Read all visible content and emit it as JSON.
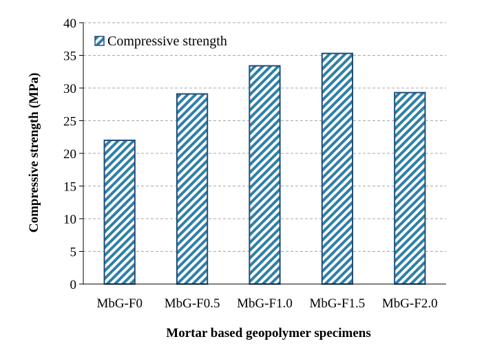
{
  "chart_data": {
    "type": "bar",
    "categories": [
      "MbG-F0",
      "MbG-F0.5",
      "MbG-F1.0",
      "MbG-F1.5",
      "MbG-F2.0"
    ],
    "series": [
      {
        "name": "Compressive strength",
        "values": [
          22.0,
          29.1,
          33.4,
          35.3,
          29.3
        ]
      }
    ],
    "xlabel": "Mortar based geopolymer specimens",
    "ylabel": "Compressive strength (MPa)",
    "ylim": [
      0,
      40
    ],
    "yticks": [
      0,
      5,
      10,
      15,
      20,
      25,
      30,
      35,
      40
    ],
    "grid": true,
    "legend_position": "top-left",
    "colors": {
      "bar_stroke": "#1f4e79",
      "hatch": "#2f7fa8",
      "grid": "#a6a6a6",
      "axis": "#000000"
    }
  }
}
